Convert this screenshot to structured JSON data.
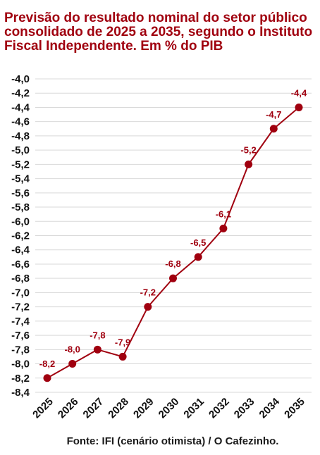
{
  "title": "Previsão do resultado nominal do setor público consolidado de 2025 a 2035, segundo o Instituto Fiscal Independente. Em % do PIB",
  "source": "Fonte: IFI (cenário otimista) / O Cafezinho.",
  "colors": {
    "accent": "#a0000f",
    "grid": "#d9d9d9",
    "text": "#111111"
  },
  "chart_data": {
    "type": "line",
    "title": "Previsão do resultado nominal do setor público consolidado de 2025 a 2035, segundo o Instituto Fiscal Independente. Em % do PIB",
    "xlabel": "",
    "ylabel": "",
    "categories": [
      "2025",
      "2026",
      "2027",
      "2028",
      "2029",
      "2030",
      "2031",
      "2032",
      "2033",
      "2034",
      "2035"
    ],
    "values": [
      -8.2,
      -8.0,
      -7.8,
      -7.9,
      -7.2,
      -6.8,
      -6.5,
      -6.1,
      -5.2,
      -4.7,
      -4.4
    ],
    "value_labels": [
      "-8,2",
      "-8,0",
      "-7,8",
      "-7,9",
      "-7,2",
      "-6,8",
      "-6,5",
      "-6,1",
      "-5,2",
      "-4,7",
      "-4,4"
    ],
    "ylim": [
      -8.4,
      -4.0
    ],
    "yticks": [
      -4.0,
      -4.2,
      -4.4,
      -4.6,
      -4.8,
      -5.0,
      -5.2,
      -5.4,
      -5.6,
      -5.8,
      -6.0,
      -6.2,
      -6.4,
      -6.6,
      -6.8,
      -7.0,
      -7.2,
      -7.4,
      -7.6,
      -7.8,
      -8.0,
      -8.2,
      -8.4
    ],
    "ytick_labels": [
      "-4,0",
      "-4,2",
      "-4,4",
      "-4,6",
      "-4,8",
      "-5,0",
      "-5,2",
      "-5,4",
      "-5,6",
      "-5,8",
      "-6,0",
      "-6,2",
      "-6,4",
      "-6,6",
      "-6,8",
      "-7,0",
      "-7,2",
      "-7,4",
      "-7,6",
      "-7,8",
      "-8,0",
      "-8,2",
      "-8,4"
    ],
    "grid": true,
    "legend": "none",
    "series_color": "#a0000f"
  }
}
